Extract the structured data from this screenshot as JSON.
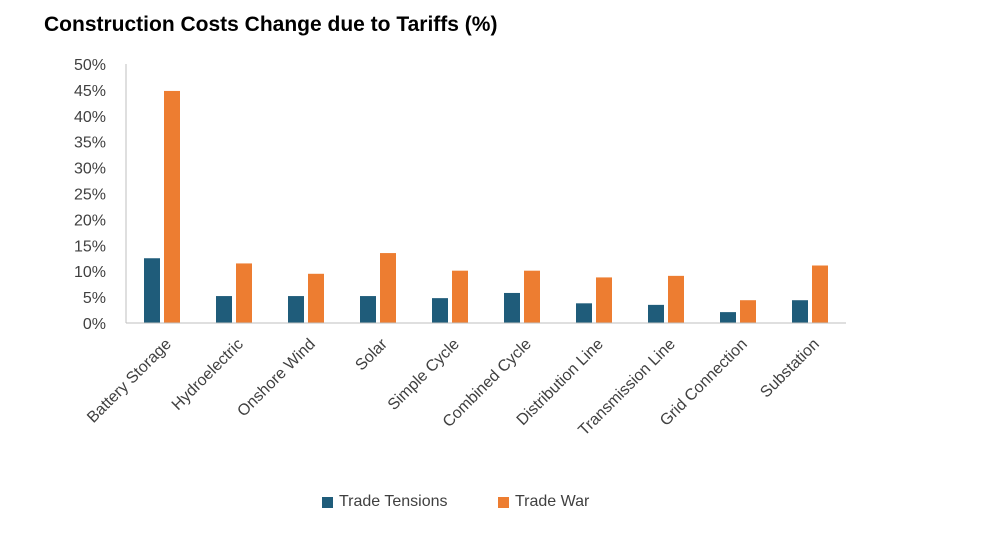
{
  "chart_data": {
    "type": "bar",
    "title": "Construction Costs Change due to Tariffs (%)",
    "categories": [
      "Battery Storage",
      "Hydroelectric",
      "Onshore Wind",
      "Solar",
      "Simple Cycle",
      "Combined Cycle",
      "Distribution Line",
      "Transmission Line",
      "Grid Connection",
      "Substation"
    ],
    "series": [
      {
        "name": "Trade Tensions",
        "color": "#1f5c7a",
        "values": [
          12.5,
          5.2,
          5.2,
          5.2,
          4.8,
          5.8,
          3.8,
          3.5,
          2.1,
          4.4
        ]
      },
      {
        "name": "Trade War",
        "color": "#ed7d31",
        "values": [
          44.8,
          11.5,
          9.5,
          13.5,
          10.1,
          10.1,
          8.8,
          9.1,
          4.4,
          11.1
        ]
      }
    ],
    "yticks": [
      "0%",
      "5%",
      "10%",
      "15%",
      "20%",
      "25%",
      "30%",
      "35%",
      "40%",
      "45%",
      "50%"
    ],
    "ylim": [
      0,
      50
    ],
    "xlabel": "",
    "ylabel": "",
    "grid": false,
    "legend_position": "bottom"
  }
}
